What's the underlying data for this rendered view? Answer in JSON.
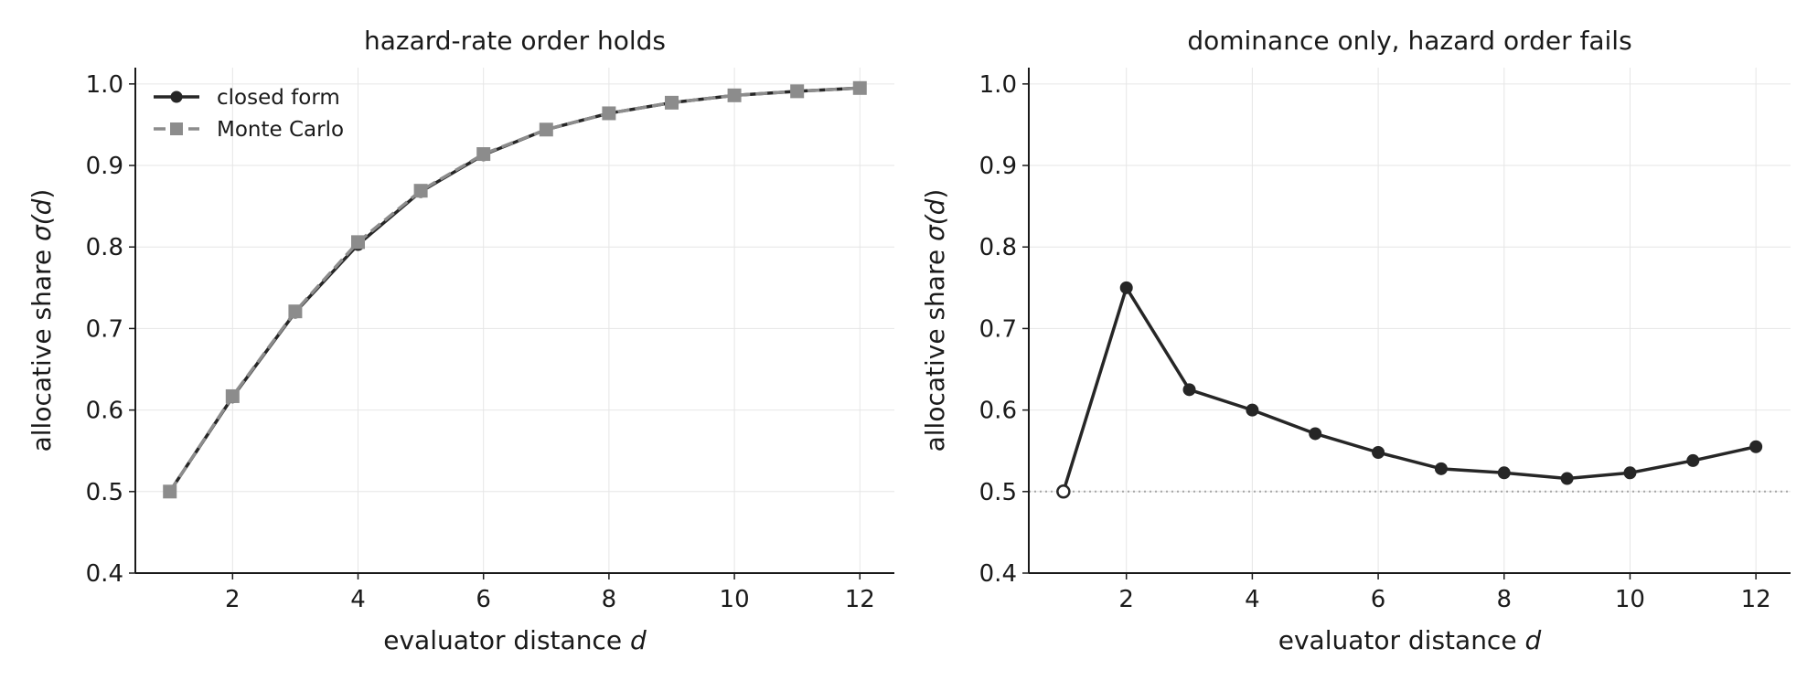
{
  "colors": {
    "closed_form": "#262626",
    "monte_carlo": "#8c8c8c",
    "grid": "#e6e6e6",
    "reference_line": "#a6a6a6",
    "axis": "#1a1a1a"
  },
  "chart_data": [
    {
      "type": "line",
      "title": "hazard-rate order holds",
      "xlabel": "evaluator distance d",
      "ylabel": "allocative share σ(d)",
      "xlim": [
        0.45,
        12.55
      ],
      "ylim": [
        0.4,
        1.02
      ],
      "xticks": [
        2,
        4,
        6,
        8,
        10,
        12
      ],
      "yticks": [
        0.4,
        0.5,
        0.6,
        0.7,
        0.8,
        0.9,
        1.0
      ],
      "ytick_labels": [
        "0.4",
        "0.5",
        "0.6",
        "0.7",
        "0.8",
        "0.9",
        "1.0"
      ],
      "grid": true,
      "legend": {
        "placement": "top-left",
        "entries": [
          "closed form",
          "Monte Carlo"
        ]
      },
      "x": [
        1,
        2,
        3,
        4,
        5,
        6,
        7,
        8,
        9,
        10,
        11,
        12
      ],
      "series": [
        {
          "name": "closed form",
          "style": "solid",
          "marker": "circle",
          "color": "#262626",
          "values": [
            0.5,
            0.616,
            0.72,
            0.803,
            0.868,
            0.913,
            0.944,
            0.964,
            0.977,
            0.986,
            0.991,
            0.995
          ]
        },
        {
          "name": "Monte Carlo",
          "style": "dashed",
          "marker": "square",
          "color": "#8c8c8c",
          "values": [
            0.5,
            0.617,
            0.721,
            0.806,
            0.869,
            0.914,
            0.944,
            0.964,
            0.977,
            0.986,
            0.991,
            0.995
          ]
        }
      ]
    },
    {
      "type": "line",
      "title": "dominance only, hazard order fails",
      "xlabel": "evaluator distance d",
      "ylabel": "allocative share σ(d)",
      "xlim": [
        0.45,
        12.55
      ],
      "ylim": [
        0.4,
        1.02
      ],
      "xticks": [
        2,
        4,
        6,
        8,
        10,
        12
      ],
      "yticks": [
        0.4,
        0.5,
        0.6,
        0.7,
        0.8,
        0.9,
        1.0
      ],
      "ytick_labels": [
        "0.4",
        "0.5",
        "0.6",
        "0.7",
        "0.8",
        "0.9",
        "1.0"
      ],
      "grid": true,
      "reference_line": {
        "y": 0.5,
        "style": "dotted"
      },
      "x": [
        1,
        2,
        3,
        4,
        5,
        6,
        7,
        8,
        9,
        10,
        11,
        12
      ],
      "series": [
        {
          "style": "solid",
          "marker": "circle",
          "first_marker_hollow": true,
          "color": "#262626",
          "values": [
            0.5,
            0.75,
            0.625,
            0.6,
            0.571,
            0.548,
            0.528,
            0.523,
            0.516,
            0.523,
            0.538,
            0.555
          ]
        }
      ]
    }
  ]
}
